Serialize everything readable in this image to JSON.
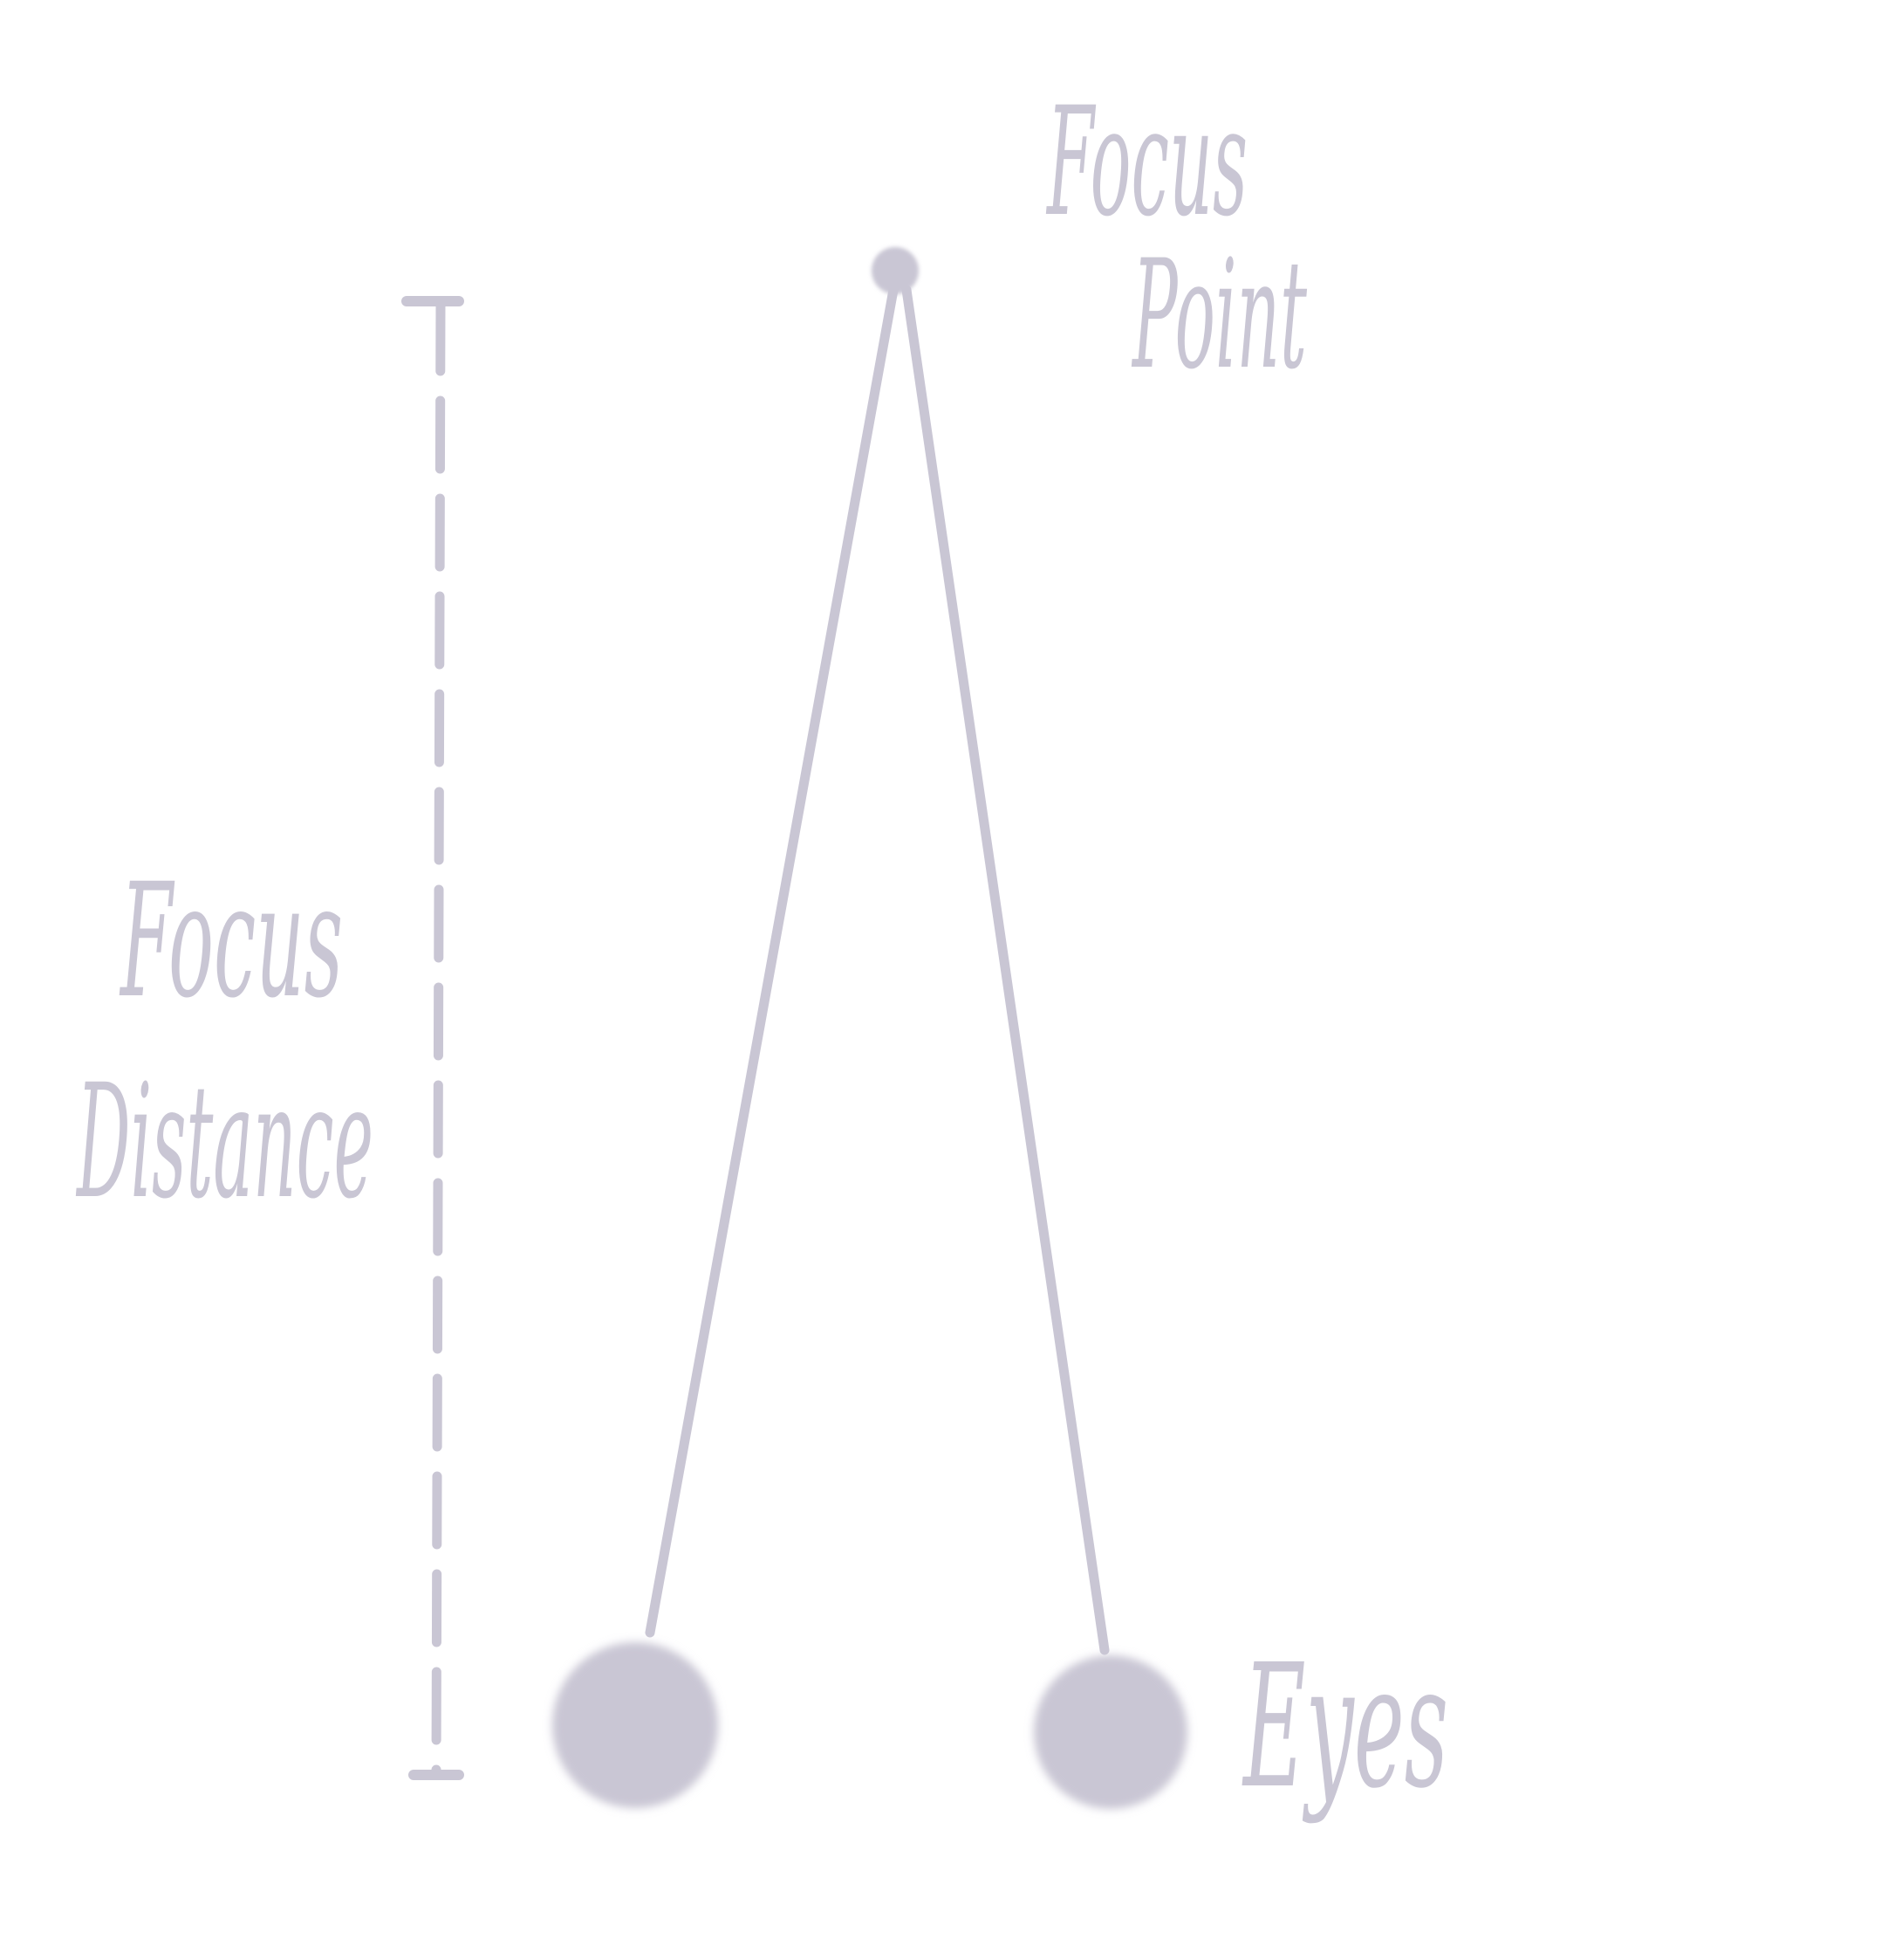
{
  "diagram": {
    "ink_color": "#c9c6d4",
    "background_color": "#ffffff",
    "labels": {
      "focus_point_line1": "Focus",
      "focus_point_line2": "Point",
      "focus_distance_line1": "Focus",
      "focus_distance_line2": "Distance",
      "eyes": "Eyes"
    },
    "nodes": {
      "focus_point": "focus-point-dot",
      "left_eye": "left-eye",
      "right_eye": "right-eye"
    }
  }
}
